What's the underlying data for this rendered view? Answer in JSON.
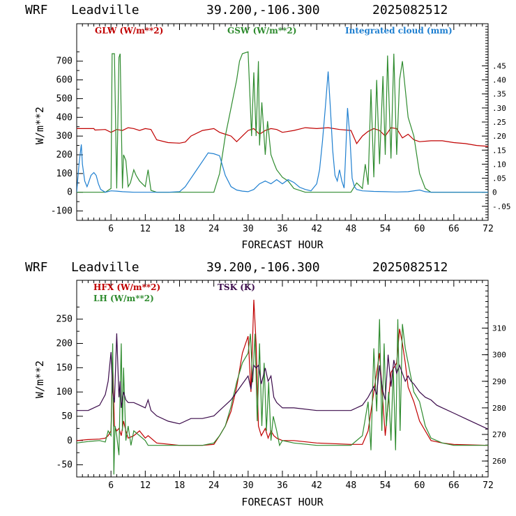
{
  "chart_data": [
    {
      "type": "line",
      "title": {
        "model": "WRF",
        "location": "Leadville",
        "coords": "39.200,-106.300",
        "run": "2025082512"
      },
      "xlabel": "FORECAST HOUR",
      "ylabel": "W/m**2",
      "xlim": [
        0,
        72
      ],
      "ylim": [
        -150,
        900
      ],
      "xticks": [
        6,
        12,
        18,
        24,
        30,
        36,
        42,
        48,
        54,
        60,
        66,
        72
      ],
      "yticks": [
        -100,
        0,
        100,
        200,
        300,
        400,
        500,
        600,
        700
      ],
      "y2lim": [
        -0.1,
        0.6
      ],
      "y2ticks": [
        -0.05,
        0,
        0.05,
        0.1,
        0.15,
        0.2,
        0.25,
        0.3,
        0.35,
        0.4,
        0.45
      ],
      "y2ticklabels": [
        "-.05",
        "0",
        ".05",
        ".10",
        ".15",
        ".20",
        ".25",
        ".30",
        ".35",
        ".40",
        ".45"
      ],
      "series": [
        {
          "name": "GLW (W/m**2)",
          "color": "#c00000",
          "axis": "left",
          "x": [
            0,
            3,
            3.2,
            5,
            6,
            7,
            8,
            9,
            10,
            11,
            12,
            13,
            14,
            16,
            18,
            19,
            20,
            22,
            24,
            25,
            26,
            27,
            28,
            29,
            30,
            31,
            32,
            33,
            34,
            35,
            36,
            38,
            40,
            42,
            44,
            46,
            48,
            49,
            50,
            51,
            52,
            53,
            54,
            55,
            56,
            57,
            58,
            59,
            60,
            62,
            64,
            66,
            68,
            70,
            72
          ],
          "y": [
            340,
            340,
            332,
            335,
            320,
            335,
            330,
            345,
            340,
            330,
            340,
            335,
            280,
            265,
            262,
            268,
            300,
            330,
            340,
            320,
            310,
            300,
            270,
            300,
            330,
            340,
            310,
            330,
            340,
            335,
            320,
            330,
            345,
            340,
            345,
            335,
            330,
            260,
            300,
            325,
            340,
            330,
            300,
            345,
            340,
            290,
            310,
            280,
            270,
            275,
            275,
            265,
            260,
            250,
            245
          ]
        },
        {
          "name": "GSW (W/m**2)",
          "color": "#2e8b2e",
          "axis": "left",
          "x": [
            0,
            5,
            6,
            6.2,
            6.6,
            7,
            7.4,
            7.6,
            8,
            8.2,
            8.6,
            9,
            9.4,
            10,
            10.4,
            11,
            12,
            12.5,
            13,
            14,
            18,
            22,
            24,
            25,
            26,
            27,
            28,
            28.5,
            29,
            30,
            30.6,
            31,
            31.4,
            31.8,
            32,
            32.4,
            33,
            33.4,
            34,
            34.6,
            35,
            36,
            37,
            38,
            40,
            48,
            49,
            50,
            50.5,
            51,
            51.5,
            52,
            52.5,
            53,
            53.6,
            54,
            54.4,
            55,
            55.5,
            56,
            56.5,
            57,
            57.5,
            58,
            58.5,
            59,
            60,
            61,
            62,
            66,
            72
          ],
          "y": [
            0,
            0,
            20,
            740,
            740,
            20,
            720,
            740,
            20,
            200,
            170,
            30,
            50,
            120,
            90,
            60,
            30,
            120,
            10,
            0,
            0,
            0,
            0,
            100,
            300,
            450,
            600,
            700,
            740,
            750,
            300,
            640,
            300,
            700,
            250,
            480,
            200,
            380,
            200,
            150,
            120,
            80,
            60,
            20,
            0,
            0,
            50,
            20,
            150,
            40,
            550,
            80,
            600,
            150,
            620,
            200,
            730,
            180,
            740,
            200,
            600,
            700,
            550,
            400,
            350,
            300,
            100,
            20,
            0,
            0,
            0
          ]
        },
        {
          "name": "Integrated cloud (mm)",
          "color": "#1e7fd0",
          "axis": "right",
          "x": [
            0,
            0.4,
            0.8,
            1,
            1.4,
            1.8,
            2,
            2.5,
            3,
            3.4,
            3.8,
            4.2,
            4.6,
            5,
            6,
            7,
            8,
            10,
            12,
            14,
            16,
            18,
            19,
            20,
            21,
            22,
            23,
            24,
            25,
            26,
            27,
            28,
            29,
            30,
            31,
            32,
            33,
            34,
            35,
            36,
            37,
            38,
            39,
            40,
            41,
            42,
            42.5,
            43,
            43.5,
            44,
            44.4,
            44.8,
            45.2,
            45.6,
            46,
            46.4,
            46.8,
            47,
            47.4,
            47.8,
            48.2,
            48.6,
            49,
            50,
            52,
            54,
            56,
            58,
            60,
            61,
            62,
            64,
            66,
            68,
            70,
            72
          ],
          "y": [
            0,
            0.1,
            0.17,
            0.1,
            0.04,
            0.02,
            0.03,
            0.06,
            0.07,
            0.06,
            0.03,
            0.01,
            0.005,
            0.0,
            0.005,
            0.004,
            0.002,
            0,
            0,
            0,
            0,
            0.002,
            0.02,
            0.05,
            0.08,
            0.11,
            0.14,
            0.137,
            0.13,
            0.06,
            0.02,
            0.008,
            0.004,
            0.002,
            0.01,
            0.03,
            0.04,
            0.03,
            0.045,
            0.03,
            0.045,
            0.035,
            0.018,
            0.01,
            0.005,
            0.03,
            0.08,
            0.18,
            0.3,
            0.43,
            0.3,
            0.15,
            0.06,
            0.04,
            0.08,
            0.04,
            0.015,
            0.1,
            0.3,
            0.2,
            0.05,
            0.02,
            0.01,
            0.005,
            0.003,
            0.002,
            0.001,
            0.002,
            0.008,
            0.002,
            0.0,
            0,
            0,
            0,
            0,
            0
          ]
        }
      ]
    },
    {
      "type": "line",
      "title": {
        "model": "WRF",
        "location": "Leadville",
        "coords": "39.200,-106.300",
        "run": "2025082512"
      },
      "xlabel": "FORECAST HOUR",
      "ylabel": "W/m**2",
      "xlim": [
        0,
        72
      ],
      "ylim": [
        -75,
        330
      ],
      "xticks": [
        6,
        12,
        18,
        24,
        30,
        36,
        42,
        48,
        54,
        60,
        66,
        72
      ],
      "yticks": [
        -50,
        0,
        50,
        100,
        150,
        200,
        250
      ],
      "y2lim": [
        254,
        328
      ],
      "y2ticks": [
        260,
        270,
        280,
        290,
        300,
        310
      ],
      "y2ticklabels": [
        "260",
        "270",
        "280",
        "290",
        "300",
        "310"
      ],
      "series": [
        {
          "name": "HFX (W/m**2)",
          "color": "#c00000",
          "axis": "left",
          "x": [
            0,
            2,
            4,
            5,
            5.5,
            6,
            6.3,
            6.6,
            7,
            7.4,
            7.8,
            8.2,
            8.6,
            9,
            10,
            11,
            12,
            12.5,
            14,
            18,
            22,
            24,
            25,
            26,
            27,
            28,
            29,
            30,
            30.5,
            31,
            31.4,
            31.8,
            32.3,
            33,
            33.5,
            34,
            34.5,
            35,
            36,
            38,
            42,
            48,
            50,
            51,
            52,
            53,
            54,
            55,
            56,
            56.5,
            57,
            57.5,
            58,
            59,
            60,
            61,
            62,
            64,
            66,
            72
          ],
          "y": [
            0,
            2,
            3,
            5,
            10,
            20,
            160,
            30,
            20,
            25,
            10,
            40,
            20,
            5,
            10,
            20,
            5,
            10,
            -5,
            -10,
            -10,
            -8,
            10,
            30,
            60,
            110,
            180,
            215,
            100,
            290,
            200,
            30,
            10,
            25,
            5,
            20,
            10,
            5,
            0,
            0,
            -5,
            -8,
            -8,
            20,
            100,
            180,
            10,
            140,
            160,
            230,
            200,
            160,
            110,
            80,
            40,
            20,
            0,
            -5,
            -8,
            -10
          ]
        },
        {
          "name": "LH (W/m**2)",
          "color": "#2e8b2e",
          "axis": "left",
          "x": [
            0,
            2,
            4,
            5,
            5.5,
            6,
            6.3,
            6.5,
            6.7,
            7,
            7.4,
            7.6,
            7.8,
            8,
            8.2,
            8.6,
            9,
            9.5,
            10,
            11,
            12,
            12.5,
            14,
            18,
            22,
            24,
            25,
            26,
            27,
            28,
            29,
            30,
            30.4,
            30.8,
            31.2,
            31.6,
            32,
            32.4,
            32.8,
            33.2,
            33.6,
            34,
            34.4,
            35,
            35.5,
            36,
            38,
            42,
            48,
            50,
            51,
            51.5,
            52,
            52.5,
            53,
            53.4,
            53.8,
            54.2,
            54.6,
            55,
            55.4,
            55.8,
            56.2,
            56.6,
            57,
            57.5,
            58,
            58.5,
            59,
            60,
            61,
            62,
            64,
            66,
            72
          ],
          "y": [
            -5,
            -2,
            0,
            -3,
            20,
            10,
            200,
            -70,
            30,
            10,
            -30,
            100,
            200,
            20,
            150,
            0,
            30,
            -10,
            20,
            10,
            0,
            -10,
            -10,
            -10,
            -10,
            -5,
            10,
            30,
            70,
            120,
            160,
            180,
            220,
            120,
            220,
            40,
            200,
            30,
            160,
            20,
            120,
            0,
            50,
            20,
            -10,
            0,
            -5,
            -10,
            -10,
            10,
            80,
            -20,
            190,
            60,
            250,
            20,
            200,
            30,
            100,
            0,
            150,
            -20,
            250,
            20,
            240,
            190,
            160,
            130,
            100,
            80,
            30,
            5,
            -5,
            -10,
            -10
          ]
        },
        {
          "name": "TSK (K)",
          "color": "#3a0a4a",
          "axis": "right",
          "x": [
            0,
            2,
            4,
            5,
            5.5,
            6,
            6.3,
            6.6,
            7,
            7.4,
            7.6,
            7.8,
            8.2,
            8.6,
            9,
            10,
            11,
            12,
            12.5,
            13,
            14,
            16,
            18,
            20,
            22,
            24,
            25,
            26,
            27,
            28,
            29,
            30,
            30.5,
            31,
            31.4,
            31.8,
            32.3,
            33,
            33.5,
            34,
            34.5,
            35,
            36,
            38,
            42,
            48,
            50,
            51,
            52,
            52.5,
            53,
            53.5,
            54,
            54.5,
            55,
            55.5,
            56,
            56.5,
            57,
            57.5,
            58,
            58.5,
            59,
            60,
            61,
            62,
            63,
            64,
            66,
            68,
            70,
            72
          ],
          "y": [
            279,
            279,
            281,
            285,
            290,
            301,
            286,
            282,
            308,
            284,
            290,
            280,
            286,
            283,
            282,
            282,
            281,
            280,
            283,
            279,
            277,
            275,
            274,
            276,
            276,
            277,
            279,
            281,
            283,
            286,
            289,
            292,
            287,
            296,
            295,
            296,
            289,
            295,
            290,
            292,
            284,
            282,
            280,
            280,
            279,
            279,
            281,
            284,
            288,
            285,
            296,
            287,
            283,
            300,
            288,
            298,
            293,
            296,
            293,
            290,
            292,
            290,
            289,
            286,
            284,
            283,
            281,
            280,
            278,
            276,
            274,
            272
          ]
        }
      ]
    }
  ]
}
